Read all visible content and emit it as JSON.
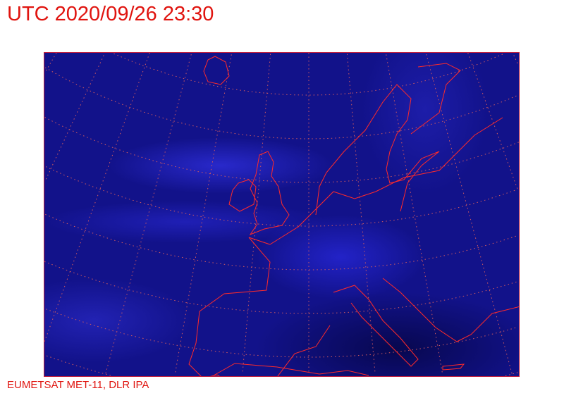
{
  "header": {
    "title": "UTC 2020/09/26 23:30"
  },
  "footer": {
    "credit": "EUMETSAT MET-11, DLR IPA"
  },
  "map": {
    "imagery": "satellite infrared, blue colour scale",
    "region": "Europe",
    "overlay_color": "#e0140f",
    "graticule": "dotted"
  }
}
